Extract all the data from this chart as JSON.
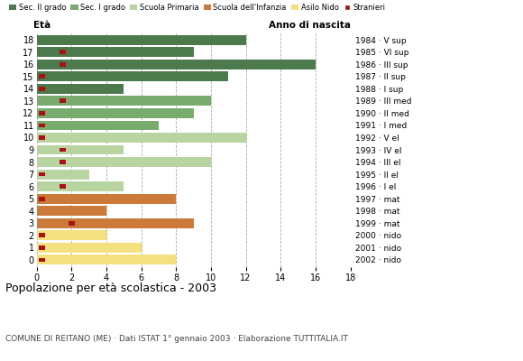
{
  "ages": [
    18,
    17,
    16,
    15,
    14,
    13,
    12,
    11,
    10,
    9,
    8,
    7,
    6,
    5,
    4,
    3,
    2,
    1,
    0
  ],
  "years": [
    "1984 · V sup",
    "1985 · VI sup",
    "1986 · III sup",
    "1987 · II sup",
    "1988 · I sup",
    "1989 · III med",
    "1990 · II med",
    "1991 · I med",
    "1992 · V el",
    "1993 · IV el",
    "1994 · III el",
    "1995 · II el",
    "1996 · I el",
    "1997 · mat",
    "1998 · mat",
    "1999 · mat",
    "2000 · nido",
    "2001 · nido",
    "2002 · nido"
  ],
  "bar_values": [
    12,
    9,
    16,
    11,
    5,
    10,
    9,
    7,
    12,
    5,
    10,
    3,
    5,
    8,
    4,
    9,
    4,
    6,
    8
  ],
  "categories": {
    "Sec. II grado": {
      "ages": [
        14,
        15,
        16,
        17,
        18
      ],
      "color": "#4d7a4d"
    },
    "Sec. I grado": {
      "ages": [
        11,
        12,
        13
      ],
      "color": "#7aab6e"
    },
    "Scuola Primaria": {
      "ages": [
        6,
        7,
        8,
        9,
        10
      ],
      "color": "#b8d4a0"
    },
    "Scuola dell'Infanzia": {
      "ages": [
        3,
        4,
        5
      ],
      "color": "#cc7a3a"
    },
    "Asilo Nido": {
      "ages": [
        0,
        1,
        2
      ],
      "color": "#f5e080"
    }
  },
  "stranieri_color": "#aa1111",
  "stranieri_positions": {
    "17": 1.5,
    "16": 1.5,
    "15": 0.3,
    "14": 0.3,
    "13": 1.5,
    "12": 0.3,
    "11": 0.3,
    "10": 0.3,
    "9": 1.5,
    "8": 1.5,
    "7": 0.3,
    "6": 1.5,
    "5": 0.3,
    "3": 2.0,
    "2": 0.3,
    "1": 0.3,
    "0": 0.3
  },
  "title": "Popolazione per età scolastica - 2003",
  "subtitle": "COMUNE DI REITANO (ME) · Dati ISTAT 1° gennaio 2003 · Elaborazione TUTTITALIA.IT",
  "eta_label": "Età",
  "anno_label": "Anno di nascita",
  "xlim": [
    0,
    18
  ],
  "xticks": [
    0,
    2,
    4,
    6,
    8,
    10,
    12,
    14,
    16,
    18
  ],
  "bg_color": "#ffffff",
  "legend_items": [
    {
      "label": "Sec. II grado",
      "color": "#4d7a4d",
      "type": "patch"
    },
    {
      "label": "Sec. I grado",
      "color": "#7aab6e",
      "type": "patch"
    },
    {
      "label": "Scuola Primaria",
      "color": "#b8d4a0",
      "type": "patch"
    },
    {
      "label": "Scuola dell'Infanzia",
      "color": "#cc7a3a",
      "type": "patch"
    },
    {
      "label": "Asilo Nido",
      "color": "#f5e080",
      "type": "patch"
    },
    {
      "label": "Stranieri",
      "color": "#aa1111",
      "type": "square"
    }
  ]
}
